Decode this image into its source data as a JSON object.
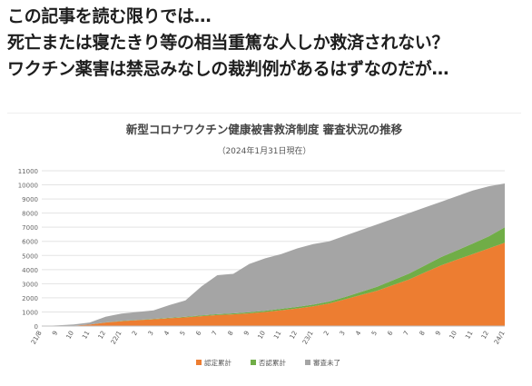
{
  "caption": {
    "line1": "この記事を読む限りでは…",
    "line2": "死亡または寝たきり等の相当重篤な人しか救済されない？",
    "line3": "ワクチン薬害は禁忌みなしの裁判例があるはずなのだが…"
  },
  "chart_data": {
    "type": "area",
    "stacked": true,
    "title": "新型コロナワクチン健康被害救済制度 審査状況の推移",
    "subtitle": "（2024年1月31日現在）",
    "xlabel": "",
    "ylabel": "",
    "ylim": [
      0,
      11000
    ],
    "yticks": [
      0,
      1000,
      2000,
      3000,
      4000,
      5000,
      6000,
      7000,
      8000,
      9000,
      10000,
      11000
    ],
    "grid": true,
    "legend_position": "bottom",
    "categories": [
      "21/8",
      "9",
      "10",
      "11",
      "12",
      "22/1",
      "2",
      "3",
      "4",
      "5",
      "6",
      "7",
      "8",
      "9",
      "10",
      "11",
      "12",
      "23/1",
      "2",
      "3",
      "4",
      "5",
      "6",
      "7",
      "8",
      "9",
      "10",
      "11",
      "12",
      "24/1"
    ],
    "series": [
      {
        "name": "認定累計",
        "color": "#ED7D31",
        "values": [
          0,
          10,
          30,
          100,
          250,
          350,
          420,
          480,
          550,
          620,
          700,
          780,
          830,
          900,
          1000,
          1120,
          1250,
          1400,
          1600,
          1900,
          2200,
          2500,
          2900,
          3300,
          3800,
          4300,
          4700,
          5100,
          5500,
          5900
        ]
      },
      {
        "name": "否認累計",
        "color": "#70AD47",
        "values": [
          0,
          0,
          0,
          0,
          10,
          15,
          20,
          25,
          35,
          45,
          55,
          60,
          70,
          80,
          90,
          100,
          110,
          120,
          140,
          160,
          220,
          280,
          350,
          420,
          500,
          580,
          660,
          750,
          850,
          1100
        ]
      },
      {
        "name": "審査未了",
        "color": "#A5A5A5",
        "values": [
          0,
          40,
          80,
          150,
          400,
          520,
          560,
          600,
          900,
          1150,
          2050,
          2760,
          2800,
          3420,
          3710,
          3880,
          4140,
          4280,
          4260,
          4340,
          4380,
          4420,
          4350,
          4280,
          4100,
          3920,
          3840,
          3750,
          3550,
          3100
        ]
      }
    ]
  }
}
